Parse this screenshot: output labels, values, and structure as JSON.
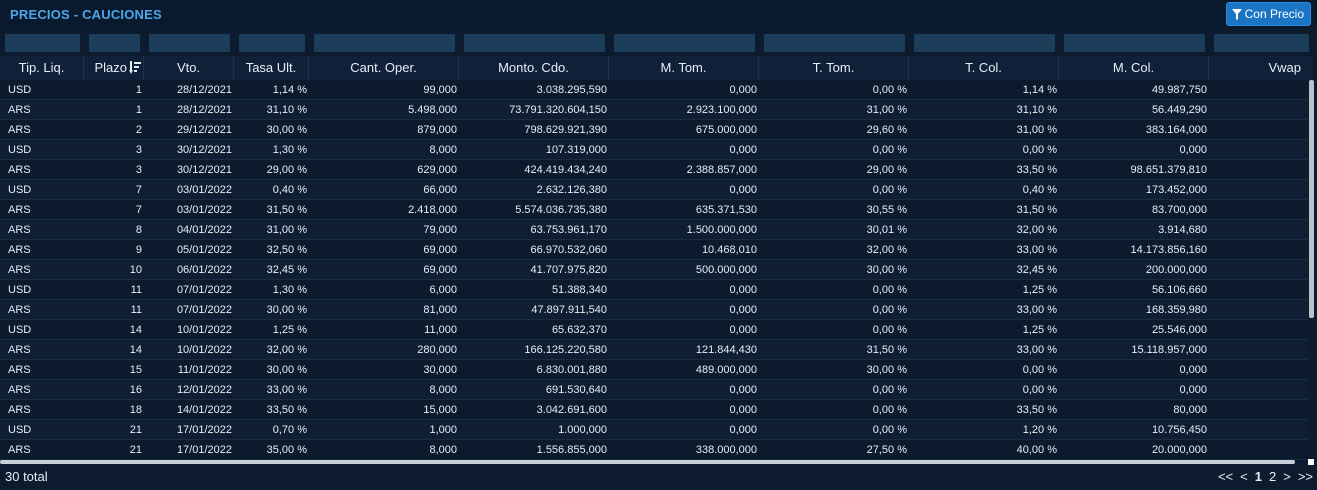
{
  "header": {
    "title": "PRECIOS - CAUCIONES",
    "filter_button": "Con Precio"
  },
  "table": {
    "columns": [
      "Tip. Liq.",
      "Plazo",
      "Vto.",
      "Tasa Ult.",
      "Cant. Oper.",
      "Monto. Cdo.",
      "M. Tom.",
      "T. Tom.",
      "T. Col.",
      "M. Col.",
      "Vwap"
    ],
    "rows": [
      [
        "USD",
        "1",
        "28/12/2021",
        "1,14 %",
        "99,000",
        "3.038.295,590",
        "0,000",
        "0,00 %",
        "1,14 %",
        "49.987,750",
        ""
      ],
      [
        "ARS",
        "1",
        "28/12/2021",
        "31,10 %",
        "5.498,000",
        "73.791.320.604,150",
        "2.923.100,000",
        "31,00 %",
        "31,10 %",
        "56.449,290",
        ""
      ],
      [
        "ARS",
        "2",
        "29/12/2021",
        "30,00 %",
        "879,000",
        "798.629.921,390",
        "675.000,000",
        "29,60 %",
        "31,00 %",
        "383.164,000",
        ""
      ],
      [
        "USD",
        "3",
        "30/12/2021",
        "1,30 %",
        "8,000",
        "107.319,000",
        "0,000",
        "0,00 %",
        "0,00 %",
        "0,000",
        ""
      ],
      [
        "ARS",
        "3",
        "30/12/2021",
        "29,00 %",
        "629,000",
        "424.419.434,240",
        "2.388.857,000",
        "29,00 %",
        "33,50 %",
        "98.651.379,810",
        ""
      ],
      [
        "USD",
        "7",
        "03/01/2022",
        "0,40 %",
        "66,000",
        "2.632.126,380",
        "0,000",
        "0,00 %",
        "0,40 %",
        "173.452,000",
        ""
      ],
      [
        "ARS",
        "7",
        "03/01/2022",
        "31,50 %",
        "2.418,000",
        "5.574.036.735,380",
        "635.371,530",
        "30,55 %",
        "31,50 %",
        "83.700,000",
        ""
      ],
      [
        "ARS",
        "8",
        "04/01/2022",
        "31,00 %",
        "79,000",
        "63.753.961,170",
        "1.500.000,000",
        "30,01 %",
        "32,00 %",
        "3.914,680",
        ""
      ],
      [
        "ARS",
        "9",
        "05/01/2022",
        "32,50 %",
        "69,000",
        "66.970.532,060",
        "10.468,010",
        "32,00 %",
        "33,00 %",
        "14.173.856,160",
        ""
      ],
      [
        "ARS",
        "10",
        "06/01/2022",
        "32,45 %",
        "69,000",
        "41.707.975,820",
        "500.000,000",
        "30,00 %",
        "32,45 %",
        "200.000,000",
        ""
      ],
      [
        "USD",
        "11",
        "07/01/2022",
        "1,30 %",
        "6,000",
        "51.388,340",
        "0,000",
        "0,00 %",
        "1,25 %",
        "56.106,660",
        ""
      ],
      [
        "ARS",
        "11",
        "07/01/2022",
        "30,00 %",
        "81,000",
        "47.897.911,540",
        "0,000",
        "0,00 %",
        "33,00 %",
        "168.359,980",
        ""
      ],
      [
        "USD",
        "14",
        "10/01/2022",
        "1,25 %",
        "11,000",
        "65.632,370",
        "0,000",
        "0,00 %",
        "1,25 %",
        "25.546,000",
        ""
      ],
      [
        "ARS",
        "14",
        "10/01/2022",
        "32,00 %",
        "280,000",
        "166.125.220,580",
        "121.844,430",
        "31,50 %",
        "33,00 %",
        "15.118.957,000",
        ""
      ],
      [
        "ARS",
        "15",
        "11/01/2022",
        "30,00 %",
        "30,000",
        "6.830.001,880",
        "489.000,000",
        "30,00 %",
        "0,00 %",
        "0,000",
        ""
      ],
      [
        "ARS",
        "16",
        "12/01/2022",
        "33,00 %",
        "8,000",
        "691.530,640",
        "0,000",
        "0,00 %",
        "0,00 %",
        "0,000",
        ""
      ],
      [
        "ARS",
        "18",
        "14/01/2022",
        "33,50 %",
        "15,000",
        "3.042.691,600",
        "0,000",
        "0,00 %",
        "33,50 %",
        "80,000",
        ""
      ],
      [
        "USD",
        "21",
        "17/01/2022",
        "0,70 %",
        "1,000",
        "1.000,000",
        "0,000",
        "0,00 %",
        "1,20 %",
        "10.756,450",
        ""
      ],
      [
        "ARS",
        "21",
        "17/01/2022",
        "35,00 %",
        "8,000",
        "1.556.855,000",
        "338.000,000",
        "27,50 %",
        "40,00 %",
        "20.000,000",
        ""
      ]
    ]
  },
  "footer": {
    "total": "30 total",
    "pager": {
      "first": "<<",
      "prev": "<",
      "pages": [
        "1",
        "2"
      ],
      "current": "1",
      "next": ">",
      "last": ">>"
    }
  },
  "colors": {
    "background": "#0d1b2f",
    "title": "#4ea6e8",
    "button": "#1b74c4",
    "filter_box": "#1d3e5b"
  },
  "icons": {
    "filter_button": "funnel-icon",
    "plazo_sort": "sort-descending-icon"
  }
}
